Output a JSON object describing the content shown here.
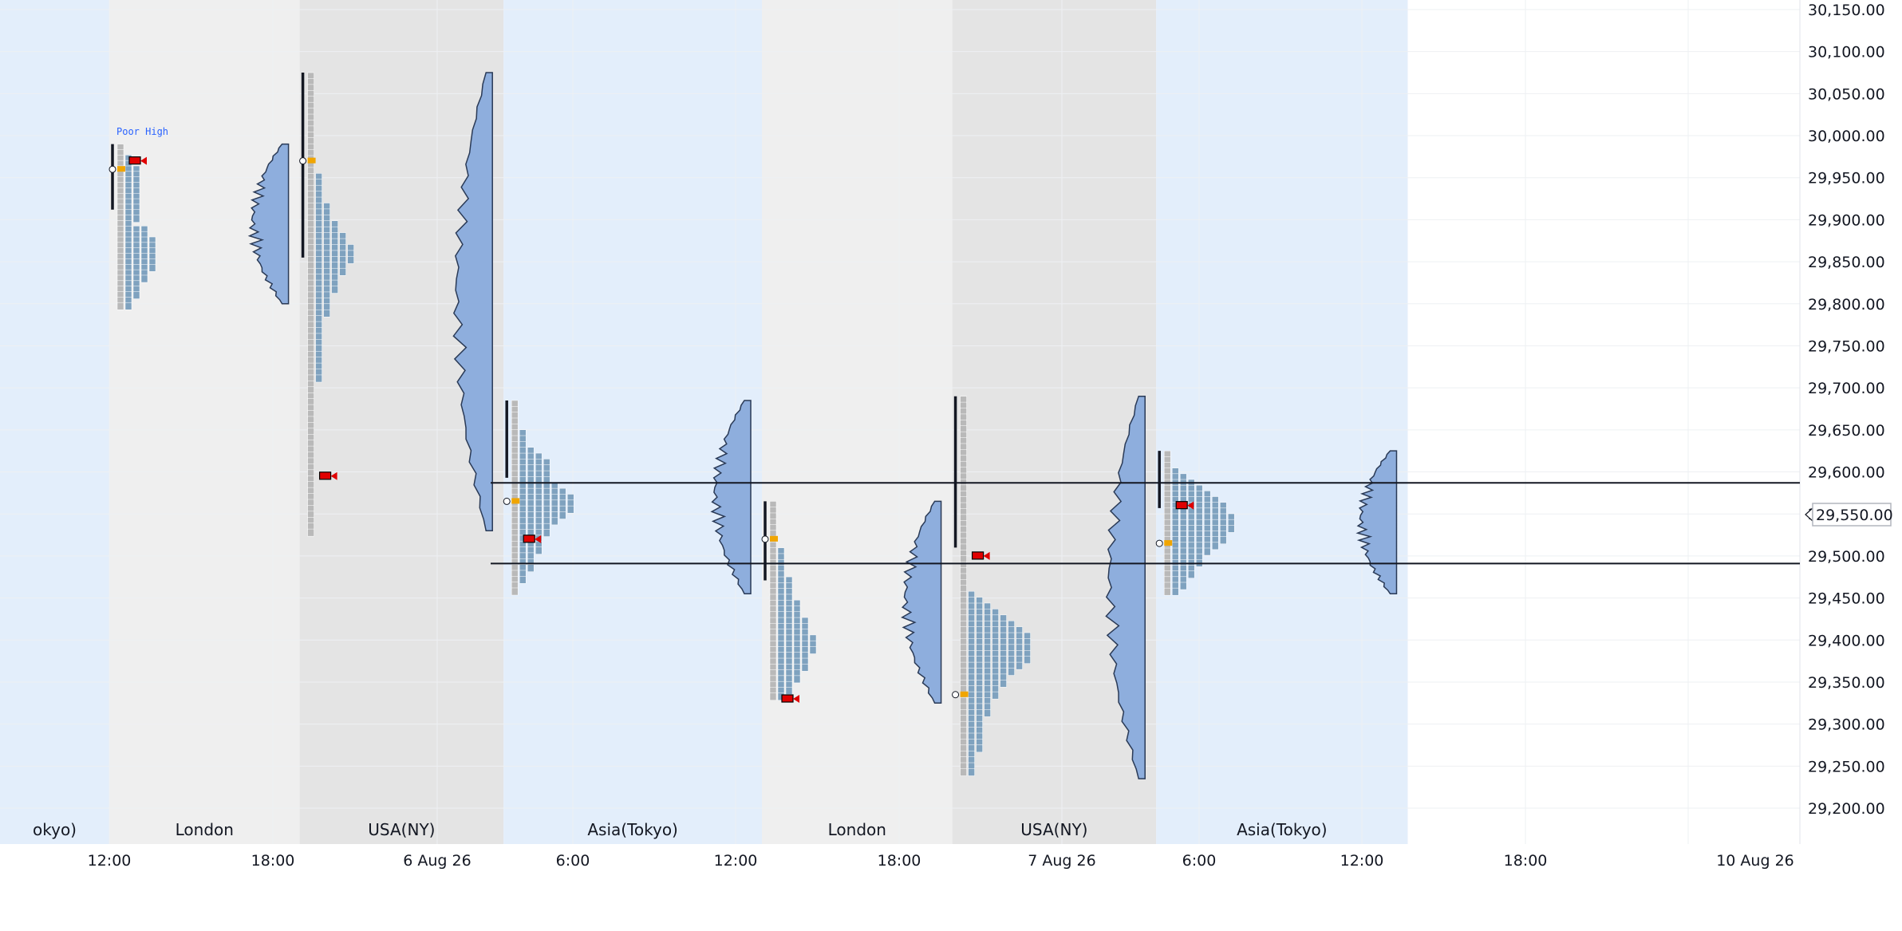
{
  "colors": {
    "asia_bg": "#e3eefb",
    "london_bg": "#efefef",
    "usa_bg": "#e4e4e4",
    "tpo": "#7fa2bf",
    "tpo_gray": "#b9b9b9",
    "volume_fill": "#8eaedd",
    "volume_stroke": "#2a3a56",
    "poc": "#f0a500",
    "marker": "#e00000",
    "line": "#131722",
    "grid": "#eef0f3",
    "price_tag_border": "#b2b5be"
  },
  "price_axis": {
    "ticks": [
      "30,150.00",
      "30,100.00",
      "30,050.00",
      "30,000.00",
      "29,950.00",
      "29,900.00",
      "29,850.00",
      "29,800.00",
      "29,750.00",
      "29,700.00",
      "29,650.00",
      "29,600.00",
      "29,550.00",
      "29,500.00",
      "29,450.00",
      "29,400.00",
      "29,350.00",
      "29,300.00",
      "29,250.00",
      "29,200.00"
    ],
    "current_price_label": "29,550.00",
    "icon": "left-arrow-icon"
  },
  "time_axis": {
    "ticks": [
      "12:00",
      "18:00",
      "6 Aug 26",
      "6:00",
      "12:00",
      "18:00",
      "7 Aug 26",
      "6:00",
      "12:00",
      "18:00",
      "10 Aug 26"
    ]
  },
  "annotation": {
    "poor_high": "Poor High"
  },
  "chart_data": {
    "type": "market-profile",
    "sessions": [
      {
        "label": "okyo)",
        "kind": "asia",
        "start": "5 Aug 26 06:00",
        "end": "5 Aug 26 12:00"
      },
      {
        "label": "London",
        "kind": "london",
        "start": "5 Aug 26 12:00",
        "end": "5 Aug 26 19:00"
      },
      {
        "label": "USA(NY)",
        "kind": "usa",
        "start": "5 Aug 26 19:00",
        "end": "6 Aug 26 02:30"
      },
      {
        "label": "Asia(Tokyo)",
        "kind": "asia",
        "start": "6 Aug 26 02:30",
        "end": "6 Aug 26 12:00"
      },
      {
        "label": "London",
        "kind": "london",
        "start": "6 Aug 26 12:00",
        "end": "6 Aug 26 19:00"
      },
      {
        "label": "USA(NY)",
        "kind": "usa",
        "start": "6 Aug 26 19:00",
        "end": "7 Aug 26 02:30"
      },
      {
        "label": "Asia(Tokyo)",
        "kind": "asia",
        "start": "7 Aug 26 02:30",
        "end": "7 Aug 26 11:45"
      }
    ],
    "y_range": [
      29180,
      30155
    ],
    "value_area_lines": [
      29587,
      29491
    ],
    "current_price": 29550,
    "profiles": [
      {
        "session": 1,
        "high": 29990,
        "low": 29795,
        "poc": 29960,
        "marker": 29970,
        "poor_high": true,
        "tpo_counts": [
          1,
          1,
          2,
          2,
          3,
          3,
          3,
          3,
          3,
          3,
          3,
          3,
          3,
          3,
          2,
          4,
          4,
          5,
          5,
          5,
          5,
          5,
          5,
          4,
          4,
          3,
          3,
          3,
          2,
          2
        ]
      },
      {
        "session": 2,
        "high": 30075,
        "low": 29525,
        "poc": 29970,
        "marker": 29595,
        "tpo_counts": [
          1,
          1,
          1,
          1,
          1,
          1,
          1,
          1,
          1,
          1,
          1,
          1,
          1,
          1,
          1,
          1,
          1,
          2,
          2,
          2,
          2,
          2,
          3,
          3,
          3,
          4,
          4,
          5,
          5,
          6,
          6,
          6,
          5,
          5,
          4,
          4,
          4,
          3,
          3,
          3,
          3,
          2,
          2,
          2,
          2,
          2,
          2,
          2,
          2,
          2,
          2,
          2,
          1,
          1,
          1,
          1,
          1,
          1,
          1,
          1,
          1,
          1,
          1,
          1,
          1,
          1,
          1,
          1,
          1,
          1,
          1,
          1,
          1,
          1,
          1,
          1,
          1,
          1
        ]
      },
      {
        "session": 3,
        "high": 29685,
        "low": 29455,
        "poc": 29565,
        "marker": 29520,
        "tpo_counts": [
          1,
          1,
          1,
          1,
          1,
          2,
          2,
          2,
          3,
          4,
          5,
          5,
          5,
          5,
          6,
          7,
          8,
          8,
          8,
          7,
          6,
          5,
          5,
          4,
          4,
          4,
          3,
          3,
          3,
          2,
          2,
          1,
          1
        ]
      },
      {
        "session": 4,
        "high": 29565,
        "low": 29330,
        "poc": 29520,
        "marker": 29330,
        "tpo_counts": [
          1,
          1,
          1,
          1,
          1,
          1,
          1,
          1,
          2,
          2,
          2,
          2,
          2,
          3,
          3,
          3,
          3,
          4,
          4,
          4,
          5,
          5,
          5,
          6,
          6,
          6,
          5,
          5,
          5,
          4,
          4,
          3,
          3,
          2
        ]
      },
      {
        "session": 5,
        "high": 29690,
        "low": 29240,
        "poc": 29335,
        "marker": 29500,
        "tpo_counts": [
          1,
          1,
          1,
          1,
          1,
          1,
          1,
          1,
          1,
          1,
          1,
          1,
          1,
          1,
          1,
          1,
          1,
          1,
          1,
          1,
          1,
          1,
          1,
          1,
          1,
          1,
          1,
          1,
          1,
          1,
          1,
          1,
          1,
          2,
          3,
          4,
          5,
          6,
          7,
          8,
          9,
          9,
          9,
          9,
          9,
          8,
          7,
          6,
          6,
          5,
          5,
          4,
          4,
          4,
          3,
          3,
          3,
          3,
          3,
          3,
          2,
          2,
          2,
          2
        ]
      },
      {
        "session": 6,
        "high": 29625,
        "low": 29455,
        "poc": 29515,
        "marker": 29560,
        "tpo_counts": [
          1,
          1,
          1,
          2,
          3,
          4,
          5,
          6,
          7,
          8,
          8,
          9,
          9,
          9,
          8,
          8,
          7,
          6,
          5,
          5,
          4,
          4,
          3,
          3,
          2
        ]
      }
    ],
    "volume_profiles": [
      {
        "session": 1,
        "high": 29990,
        "low": 29800
      },
      {
        "session": 2,
        "high": 30075,
        "low": 29530
      },
      {
        "session": 3,
        "high": 29685,
        "low": 29455
      },
      {
        "session": 4,
        "high": 29565,
        "low": 29325
      },
      {
        "session": 5,
        "high": 29690,
        "low": 29235
      },
      {
        "session": 6,
        "high": 29625,
        "low": 29455
      }
    ]
  }
}
